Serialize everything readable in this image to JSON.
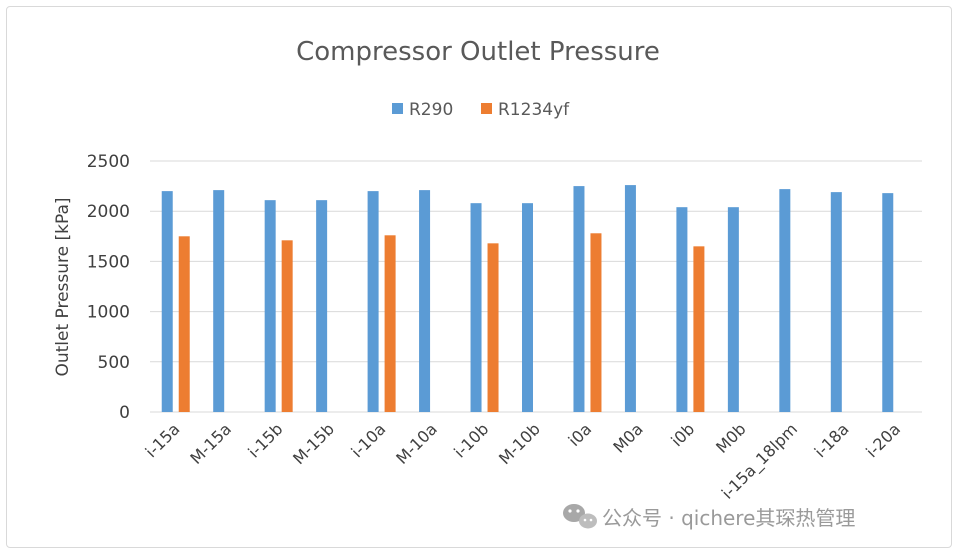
{
  "chart_data": {
    "type": "bar",
    "title": "Compressor  Outlet Pressure",
    "xlabel": "",
    "ylabel": "Outlet Pressure [kPa]",
    "ylim": [
      0,
      2500
    ],
    "yticks": [
      0,
      500,
      1000,
      1500,
      2000,
      2500
    ],
    "grid": true,
    "legend_position": "top",
    "categories": [
      "i-15a",
      "M-15a",
      "i-15b",
      "M-15b",
      "i-10a",
      "M-10a",
      "i-10b",
      "M-10b",
      "i0a",
      "M0a",
      "i0b",
      "M0b",
      "i-15a_18lpm",
      "i-18a",
      "i-20a"
    ],
    "series": [
      {
        "name": "R290",
        "color": "#5b9bd5",
        "values": [
          2200,
          2210,
          2110,
          2110,
          2200,
          2210,
          2080,
          2080,
          2250,
          2260,
          2040,
          2040,
          2220,
          2190,
          2180
        ]
      },
      {
        "name": "R1234yf",
        "color": "#ed7d31",
        "values": [
          1750,
          null,
          1710,
          null,
          1760,
          null,
          1680,
          null,
          1780,
          null,
          1650,
          null,
          null,
          null,
          null
        ]
      }
    ]
  },
  "watermark": {
    "text": "公众号 · qichere其琛热管理",
    "icon": "wechat-icon"
  }
}
